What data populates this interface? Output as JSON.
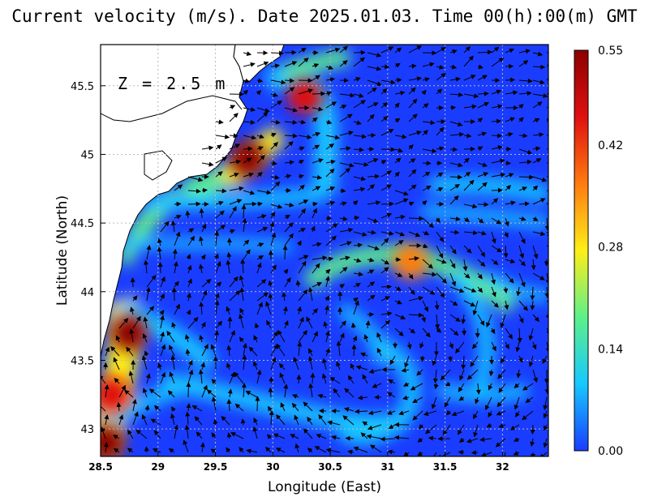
{
  "title": "Current velocity (m/s). Date 2025.01.03. Time 00(h):00(m) GMT",
  "depth_label": "Z = 2.5 m",
  "chart_data": {
    "type": "heatmap",
    "subtype": "current velocity field with vector arrows",
    "xlabel": "Longitude (East)",
    "ylabel": "Latitude (North)",
    "xlim": [
      28.5,
      32.4
    ],
    "ylim": [
      42.8,
      45.8
    ],
    "x_ticks": [
      "28.5",
      "29",
      "29.5",
      "30",
      "30.5",
      "31",
      "31.5",
      "32"
    ],
    "y_ticks": [
      "43",
      "43.5",
      "44",
      "44.5",
      "45",
      "45.5"
    ],
    "grid": true,
    "colorbar": {
      "ticks": [
        "0.00",
        "0.14",
        "0.28",
        "0.42",
        "0.55"
      ],
      "min": 0,
      "max": 0.55,
      "colors": [
        "#1a3cff",
        "#17c8ff",
        "#5df08a",
        "#ffee18",
        "#ff7b10",
        "#e01010",
        "#8c0000"
      ]
    },
    "coast_color": "#ffffff",
    "speed_hotspots": [
      {
        "lon": 29.78,
        "lat": 44.97,
        "speed": 0.52
      },
      {
        "lon": 30.28,
        "lat": 45.42,
        "speed": 0.46
      },
      {
        "lon": 28.75,
        "lat": 43.7,
        "speed": 0.53
      },
      {
        "lon": 28.6,
        "lat": 43.25,
        "speed": 0.45
      },
      {
        "lon": 28.55,
        "lat": 42.9,
        "speed": 0.52
      },
      {
        "lon": 31.2,
        "lat": 44.22,
        "speed": 0.38
      }
    ]
  }
}
